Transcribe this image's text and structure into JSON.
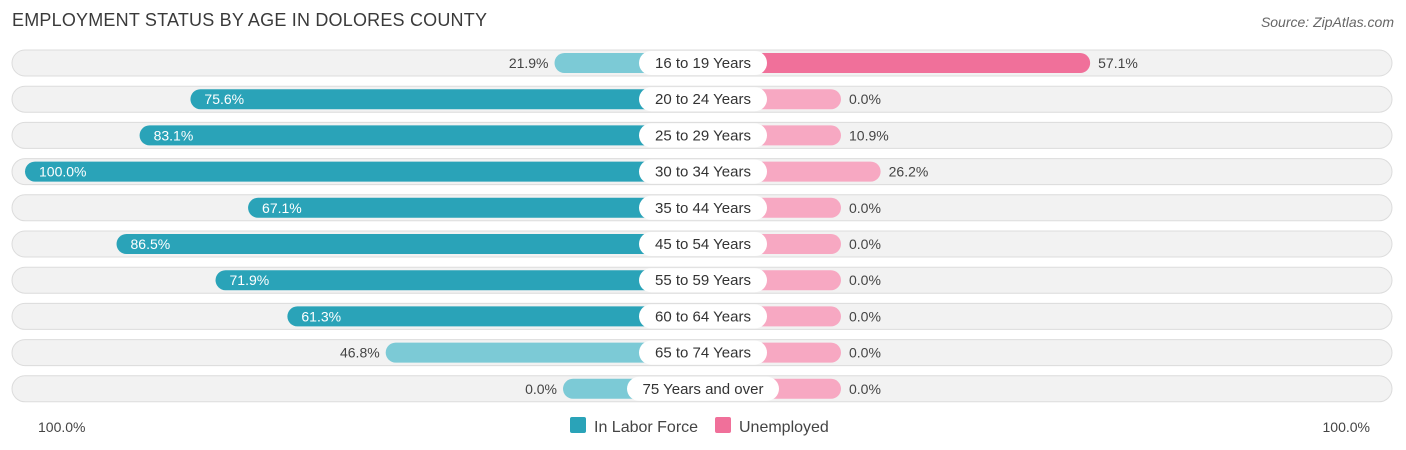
{
  "header": {
    "title": "EMPLOYMENT STATUS BY AGE IN DOLORES COUNTY",
    "source": "Source: ZipAtlas.com"
  },
  "colors": {
    "labor_strong": "#2aa3b8",
    "labor_light": "#7ccad6",
    "unemp_strong": "#f0709a",
    "unemp_light": "#f7a8c2"
  },
  "chart_data": {
    "type": "bar",
    "orientation": "horizontal-diverging",
    "title": "EMPLOYMENT STATUS BY AGE IN DOLORES COUNTY",
    "categories": [
      "16 to 19 Years",
      "20 to 24 Years",
      "25 to 29 Years",
      "30 to 34 Years",
      "35 to 44 Years",
      "45 to 54 Years",
      "55 to 59 Years",
      "60 to 64 Years",
      "65 to 74 Years",
      "75 Years and over"
    ],
    "series": [
      {
        "name": "In Labor Force",
        "values": [
          21.9,
          75.6,
          83.1,
          100.0,
          67.1,
          86.5,
          71.9,
          61.3,
          46.8,
          0.0
        ],
        "labels": [
          "21.9%",
          "75.6%",
          "83.1%",
          "100.0%",
          "67.1%",
          "86.5%",
          "71.9%",
          "61.3%",
          "46.8%",
          "0.0%"
        ]
      },
      {
        "name": "Unemployed",
        "values": [
          57.1,
          0.0,
          10.9,
          26.2,
          0.0,
          0.0,
          0.0,
          0.0,
          0.0,
          0.0
        ],
        "labels": [
          "57.1%",
          "0.0%",
          "10.9%",
          "26.2%",
          "0.0%",
          "0.0%",
          "0.0%",
          "0.0%",
          "0.0%",
          "0.0%"
        ]
      }
    ],
    "axis": {
      "left_label": "100.0%",
      "right_label": "100.0%",
      "range": [
        0,
        100
      ]
    },
    "legend": {
      "position": "bottom-center",
      "items": [
        "In Labor Force",
        "Unemployed"
      ]
    }
  }
}
